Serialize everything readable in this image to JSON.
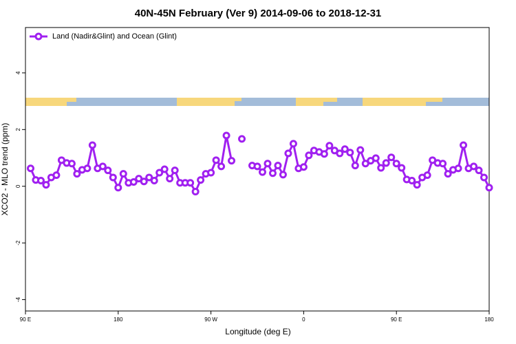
{
  "chart_data": {
    "type": "line",
    "title": "40N-45N February (Ver 9)   2014-09-06 to 2018-12-31",
    "x_label": "Longitude (deg E)",
    "y_label": "XCO2 - MLO trend (ppm)",
    "x": [
      95,
      100,
      105,
      110,
      115,
      120,
      125,
      130,
      135,
      140,
      145,
      150,
      155,
      160,
      165,
      170,
      175,
      180,
      185,
      190,
      195,
      200,
      205,
      210,
      215,
      220,
      225,
      230,
      235,
      240,
      245,
      250,
      255,
      260,
      265,
      270,
      275,
      280,
      285,
      290,
      295,
      300,
      305,
      310,
      315,
      320,
      325,
      330,
      335,
      340,
      345,
      350,
      355,
      360,
      365,
      370,
      375,
      380,
      385,
      390,
      395,
      400,
      405,
      410,
      415,
      420,
      425,
      430,
      435,
      440,
      445,
      450,
      455,
      460,
      465,
      470,
      475,
      480,
      485,
      490,
      495,
      500,
      505,
      510,
      515,
      520,
      525,
      530,
      535,
      540
    ],
    "series": [
      {
        "name": "Land (Nadir&Glint) and Ocean (Glint)",
        "color": "#a020f0",
        "values": [
          0.63,
          0.22,
          0.2,
          0.05,
          0.31,
          0.39,
          0.92,
          0.82,
          0.8,
          0.44,
          0.58,
          0.63,
          1.45,
          0.63,
          0.7,
          0.56,
          0.31,
          -0.05,
          0.44,
          0.12,
          0.15,
          0.27,
          0.17,
          0.31,
          0.2,
          0.48,
          0.6,
          0.27,
          0.56,
          0.12,
          0.12,
          0.12,
          -0.19,
          0.22,
          0.44,
          0.48,
          0.92,
          0.7,
          1.79,
          0.9,
          null,
          1.67,
          null,
          0.73,
          0.7,
          0.5,
          0.8,
          0.46,
          0.73,
          0.41,
          1.16,
          1.5,
          0.63,
          0.68,
          1.09,
          1.26,
          1.21,
          1.14,
          1.43,
          1.26,
          1.16,
          1.31,
          1.19,
          0.73,
          1.28,
          0.8,
          0.9,
          0.99,
          0.65,
          0.82,
          1.02,
          0.8,
          0.65,
          0.24,
          0.2,
          0.05,
          0.31,
          0.39,
          0.92,
          0.82,
          0.8,
          0.44,
          0.58,
          0.63,
          1.45,
          0.63,
          0.7,
          0.56,
          0.31,
          -0.05
        ]
      }
    ],
    "xlim": [
      90,
      540
    ],
    "xticks": [
      {
        "value": 90,
        "label": "90 E"
      },
      180,
      {
        "value": 270,
        "label": "90 W"
      },
      {
        "value": 360,
        "label": "0"
      },
      {
        "value": 450,
        "label": "90 E"
      },
      {
        "value": 540,
        "label": "180"
      }
    ],
    "ylim": [
      -4.4,
      5.6
    ],
    "yticks": [
      -4,
      -2,
      0,
      2,
      4
    ],
    "legend": "top-left"
  }
}
